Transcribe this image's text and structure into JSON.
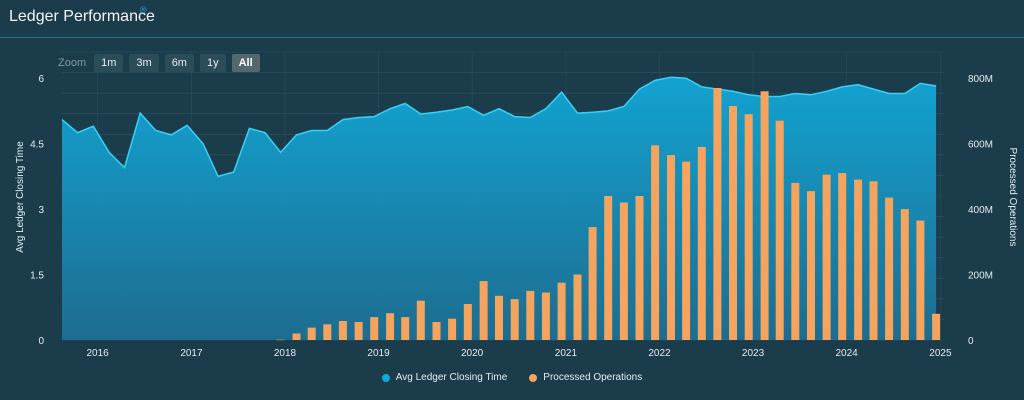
{
  "title": "Ledger Performance",
  "title_mark": "®",
  "zoom": {
    "label": "Zoom",
    "buttons": [
      "1m",
      "3m",
      "6m",
      "1y",
      "All"
    ],
    "selected": "All"
  },
  "colors": {
    "background": "#1b3d4b",
    "line_fill_top": "#12a8d8",
    "line_fill_bottom": "#1d6f93",
    "line_stroke": "#3ad0f5",
    "bars": "#f4a45e",
    "grid": "#3f6370"
  },
  "chart_data": {
    "type": "bar",
    "x_tick_labels": [
      "2016",
      "2017",
      "2018",
      "2019",
      "2020",
      "2021",
      "2022",
      "2023",
      "2024",
      "2025"
    ],
    "x_range": [
      "2015-08-15",
      "2025-01-15"
    ],
    "y_left": {
      "label": "Avg Ledger Closing Time",
      "range": [
        0,
        6.6
      ],
      "ticks": [
        0,
        1.5,
        3,
        4.5,
        6
      ],
      "tick_labels": [
        "0",
        "1.5",
        "3",
        "4.5",
        "6"
      ]
    },
    "y_right": {
      "label": "Processed Operations",
      "range": [
        0,
        880000000
      ],
      "ticks": [
        0,
        200000000,
        400000000,
        600000000,
        800000000
      ],
      "tick_labels": [
        "0",
        "200M",
        "400M",
        "600M",
        "800M"
      ]
    },
    "legend_position": "bottom-center",
    "grid": true,
    "series": [
      {
        "name": "Avg Ledger Closing Time",
        "type": "area",
        "axis": "left",
        "points": [
          [
            "2015-08-15",
            5.05
          ],
          [
            "2015-10-15",
            4.75
          ],
          [
            "2015-12-15",
            4.9
          ],
          [
            "2016-02-15",
            4.3
          ],
          [
            "2016-04-15",
            3.95
          ],
          [
            "2016-06-15",
            5.2
          ],
          [
            "2016-08-15",
            4.8
          ],
          [
            "2016-10-15",
            4.7
          ],
          [
            "2016-12-15",
            4.92
          ],
          [
            "2017-02-15",
            4.5
          ],
          [
            "2017-04-15",
            3.75
          ],
          [
            "2017-06-15",
            3.85
          ],
          [
            "2017-08-15",
            4.85
          ],
          [
            "2017-10-15",
            4.75
          ],
          [
            "2017-12-15",
            4.3
          ],
          [
            "2018-02-15",
            4.7
          ],
          [
            "2018-04-15",
            4.8
          ],
          [
            "2018-06-15",
            4.8
          ],
          [
            "2018-08-15",
            5.05
          ],
          [
            "2018-10-15",
            5.1
          ],
          [
            "2018-12-15",
            5.12
          ],
          [
            "2019-02-15",
            5.3
          ],
          [
            "2019-04-15",
            5.42
          ],
          [
            "2019-06-15",
            5.18
          ],
          [
            "2019-08-15",
            5.22
          ],
          [
            "2019-10-15",
            5.27
          ],
          [
            "2019-12-15",
            5.35
          ],
          [
            "2020-02-15",
            5.15
          ],
          [
            "2020-04-15",
            5.3
          ],
          [
            "2020-06-15",
            5.12
          ],
          [
            "2020-08-15",
            5.1
          ],
          [
            "2020-10-15",
            5.3
          ],
          [
            "2020-12-15",
            5.68
          ],
          [
            "2021-02-15",
            5.2
          ],
          [
            "2021-04-15",
            5.22
          ],
          [
            "2021-06-15",
            5.25
          ],
          [
            "2021-08-15",
            5.35
          ],
          [
            "2021-10-15",
            5.75
          ],
          [
            "2021-12-15",
            5.95
          ],
          [
            "2022-02-15",
            6.02
          ],
          [
            "2022-04-15",
            6.0
          ],
          [
            "2022-06-15",
            5.8
          ],
          [
            "2022-08-15",
            5.75
          ],
          [
            "2022-10-15",
            5.7
          ],
          [
            "2022-12-15",
            5.62
          ],
          [
            "2023-02-15",
            5.58
          ],
          [
            "2023-04-15",
            5.58
          ],
          [
            "2023-06-15",
            5.65
          ],
          [
            "2023-08-15",
            5.62
          ],
          [
            "2023-10-15",
            5.7
          ],
          [
            "2023-12-15",
            5.8
          ],
          [
            "2024-02-15",
            5.85
          ],
          [
            "2024-04-15",
            5.75
          ],
          [
            "2024-06-15",
            5.65
          ],
          [
            "2024-08-15",
            5.65
          ],
          [
            "2024-10-15",
            5.88
          ],
          [
            "2024-12-15",
            5.82
          ]
        ]
      },
      {
        "name": "Processed Operations",
        "type": "bar",
        "axis": "right",
        "points": [
          [
            "2017-12-15",
            1000000
          ],
          [
            "2018-02-15",
            20000000
          ],
          [
            "2018-04-15",
            38000000
          ],
          [
            "2018-06-15",
            48000000
          ],
          [
            "2018-08-15",
            58000000
          ],
          [
            "2018-10-15",
            55000000
          ],
          [
            "2018-12-15",
            70000000
          ],
          [
            "2019-02-15",
            82000000
          ],
          [
            "2019-04-15",
            70000000
          ],
          [
            "2019-06-15",
            120000000
          ],
          [
            "2019-08-15",
            55000000
          ],
          [
            "2019-10-15",
            65000000
          ],
          [
            "2019-12-15",
            110000000
          ],
          [
            "2020-02-15",
            180000000
          ],
          [
            "2020-04-15",
            135000000
          ],
          [
            "2020-06-15",
            125000000
          ],
          [
            "2020-08-15",
            150000000
          ],
          [
            "2020-10-15",
            145000000
          ],
          [
            "2020-12-15",
            175000000
          ],
          [
            "2021-02-15",
            200000000
          ],
          [
            "2021-04-15",
            345000000
          ],
          [
            "2021-06-15",
            440000000
          ],
          [
            "2021-08-15",
            420000000
          ],
          [
            "2021-10-15",
            440000000
          ],
          [
            "2021-12-15",
            595000000
          ],
          [
            "2022-02-15",
            565000000
          ],
          [
            "2022-04-15",
            545000000
          ],
          [
            "2022-06-15",
            590000000
          ],
          [
            "2022-08-15",
            770000000
          ],
          [
            "2022-10-15",
            715000000
          ],
          [
            "2022-12-15",
            690000000
          ],
          [
            "2023-02-15",
            760000000
          ],
          [
            "2023-04-15",
            670000000
          ],
          [
            "2023-06-15",
            480000000
          ],
          [
            "2023-08-15",
            455000000
          ],
          [
            "2023-10-15",
            505000000
          ],
          [
            "2023-12-15",
            510000000
          ],
          [
            "2024-02-15",
            490000000
          ],
          [
            "2024-04-15",
            485000000
          ],
          [
            "2024-06-15",
            435000000
          ],
          [
            "2024-08-15",
            400000000
          ],
          [
            "2024-10-15",
            365000000
          ],
          [
            "2024-12-15",
            80000000
          ]
        ]
      }
    ]
  }
}
